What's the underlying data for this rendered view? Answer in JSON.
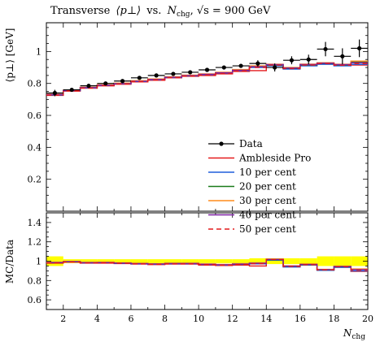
{
  "chart_data": [
    {
      "type": "line",
      "title_main": "Transverse",
      "title_obs": "⟨p⊥⟩",
      "title_vs": "vs.",
      "title_nsym": "N",
      "title_nsub": "chg",
      "title_rest": ", √s = 900 GeV",
      "ylabel": "⟨p⊥⟩ [GeV]",
      "xlabel_sym": "N",
      "xlabel_sub": "chg",
      "xlim": [
        1,
        20
      ],
      "ylim": [
        0,
        1.18
      ],
      "yticks": [
        0.2,
        0.4,
        0.6,
        0.8,
        1
      ],
      "ytick_labels": [
        "0.2",
        "0.4",
        "0.6",
        "0.8",
        "1"
      ],
      "bin_edges": [
        1,
        2,
        3,
        4,
        5,
        6,
        7,
        8,
        9,
        10,
        11,
        12,
        13,
        14,
        15,
        16,
        17,
        18,
        19,
        20
      ],
      "legend_position": "lower-right",
      "data": {
        "name": "Data",
        "x": [
          1.5,
          2.5,
          3.5,
          4.5,
          5.5,
          6.5,
          7.5,
          8.5,
          9.5,
          10.5,
          11.5,
          12.5,
          13.5,
          14.5,
          15.5,
          16.5,
          17.5,
          18.5,
          19.5
        ],
        "y": [
          0.74,
          0.76,
          0.785,
          0.8,
          0.815,
          0.835,
          0.85,
          0.86,
          0.87,
          0.885,
          0.9,
          0.91,
          0.925,
          0.9,
          0.945,
          0.95,
          1.015,
          0.97,
          1.02
        ],
        "err": [
          0.02,
          0.008,
          0.008,
          0.008,
          0.008,
          0.008,
          0.008,
          0.008,
          0.008,
          0.01,
          0.01,
          0.012,
          0.02,
          0.025,
          0.025,
          0.03,
          0.045,
          0.05,
          0.055
        ]
      },
      "mc": [
        {
          "name": "Ambleside Pro",
          "color": "#e41a1c",
          "dash": "",
          "values": [
            0.725,
            0.752,
            0.77,
            0.785,
            0.795,
            0.81,
            0.82,
            0.835,
            0.845,
            0.85,
            0.86,
            0.875,
            0.88,
            0.915,
            0.895,
            0.92,
            0.925,
            0.915,
            0.915
          ]
        },
        {
          "name": "10 per cent",
          "color": "#1f5fdc",
          "dash": "",
          "values": [
            0.728,
            0.755,
            0.772,
            0.788,
            0.798,
            0.812,
            0.823,
            0.837,
            0.847,
            0.855,
            0.865,
            0.88,
            0.9,
            0.91,
            0.89,
            0.91,
            0.92,
            0.91,
            0.92
          ]
        },
        {
          "name": "20 per cent",
          "color": "#1a7a1a",
          "dash": "",
          "values": [
            0.73,
            0.757,
            0.774,
            0.79,
            0.8,
            0.815,
            0.826,
            0.84,
            0.85,
            0.858,
            0.868,
            0.885,
            0.905,
            0.915,
            0.895,
            0.915,
            0.925,
            0.915,
            0.935
          ]
        },
        {
          "name": "30 per cent",
          "color": "#ff8c1a",
          "dash": "",
          "values": [
            0.732,
            0.758,
            0.776,
            0.792,
            0.802,
            0.817,
            0.828,
            0.842,
            0.852,
            0.86,
            0.87,
            0.887,
            0.91,
            0.92,
            0.9,
            0.92,
            0.93,
            0.92,
            0.94
          ]
        },
        {
          "name": "40 per cent",
          "color": "#7b1fa2",
          "dash": "",
          "values": [
            0.73,
            0.756,
            0.774,
            0.789,
            0.799,
            0.814,
            0.825,
            0.839,
            0.849,
            0.857,
            0.867,
            0.883,
            0.905,
            0.918,
            0.897,
            0.918,
            0.927,
            0.918,
            0.93
          ]
        },
        {
          "name": "50 per cent",
          "color": "#e41a1c",
          "dash": "6,4",
          "values": [
            0.727,
            0.754,
            0.771,
            0.787,
            0.797,
            0.812,
            0.822,
            0.836,
            0.846,
            0.853,
            0.862,
            0.878,
            0.9,
            0.915,
            0.893,
            0.915,
            0.924,
            0.914,
            0.925
          ]
        }
      ]
    },
    {
      "type": "line",
      "ylabel": "MC/Data",
      "ylim": [
        0.5,
        1.5
      ],
      "yticks": [
        0.6,
        0.8,
        1,
        1.2,
        1.4
      ],
      "ytick_labels": [
        "0.6",
        "0.8",
        "1",
        "1.2",
        "1.4"
      ],
      "xticks": [
        2,
        4,
        6,
        8,
        10,
        12,
        14,
        16,
        18,
        20
      ],
      "xtick_labels": [
        "2",
        "4",
        "6",
        "8",
        "10",
        "12",
        "14",
        "16",
        "18",
        "20"
      ],
      "band_color": "#ffff00",
      "band_halfwidth": [
        0.05,
        0.02,
        0.02,
        0.02,
        0.02,
        0.02,
        0.02,
        0.02,
        0.02,
        0.02,
        0.02,
        0.02,
        0.03,
        0.03,
        0.03,
        0.03,
        0.05,
        0.05,
        0.05
      ],
      "ratios": [
        {
          "name": "Ambleside Pro",
          "values": [
            0.98,
            0.99,
            0.98,
            0.98,
            0.975,
            0.97,
            0.965,
            0.97,
            0.97,
            0.96,
            0.955,
            0.96,
            0.95,
            1.02,
            0.95,
            0.97,
            0.91,
            0.94,
            0.895
          ]
        },
        {
          "name": "10 per cent",
          "values": [
            0.985,
            0.993,
            0.983,
            0.985,
            0.978,
            0.972,
            0.968,
            0.973,
            0.973,
            0.966,
            0.96,
            0.967,
            0.972,
            1.01,
            0.94,
            0.96,
            0.905,
            0.935,
            0.9
          ]
        },
        {
          "name": "20 per cent",
          "values": [
            0.987,
            0.996,
            0.986,
            0.987,
            0.98,
            0.976,
            0.972,
            0.977,
            0.977,
            0.969,
            0.964,
            0.973,
            0.978,
            1.015,
            0.947,
            0.963,
            0.91,
            0.943,
            0.915
          ]
        },
        {
          "name": "30 per cent",
          "values": [
            0.99,
            0.997,
            0.988,
            0.99,
            0.984,
            0.978,
            0.974,
            0.979,
            0.979,
            0.972,
            0.967,
            0.975,
            0.984,
            1.02,
            0.952,
            0.968,
            0.915,
            0.948,
            0.92
          ]
        },
        {
          "name": "40 per cent",
          "values": [
            0.986,
            0.995,
            0.986,
            0.986,
            0.98,
            0.975,
            0.971,
            0.976,
            0.976,
            0.968,
            0.963,
            0.97,
            0.978,
            1.018,
            0.949,
            0.966,
            0.912,
            0.946,
            0.912
          ]
        },
        {
          "name": "50 per cent",
          "values": [
            0.982,
            0.992,
            0.982,
            0.984,
            0.978,
            0.972,
            0.967,
            0.972,
            0.972,
            0.964,
            0.958,
            0.965,
            0.973,
            1.017,
            0.945,
            0.963,
            0.91,
            0.942,
            0.907
          ]
        }
      ]
    }
  ]
}
